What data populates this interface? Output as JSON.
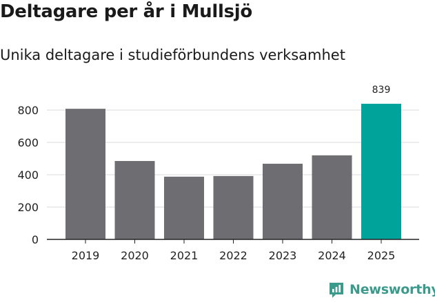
{
  "title": "Deltagare per år i Mullsjö",
  "subtitle": "Unika deltagare i studieförbundens verksamhet",
  "brand": {
    "name": "Newsworthy",
    "icon": "newsworthy-logo-icon",
    "color": "#3a9a8c"
  },
  "colors": {
    "bar": "#6e6d72",
    "highlight": "#00a39a",
    "grid": "#d9d9d9",
    "axis": "#222222"
  },
  "chart_data": {
    "type": "bar",
    "categories": [
      "2019",
      "2020",
      "2021",
      "2022",
      "2023",
      "2024",
      "2025"
    ],
    "values": [
      808,
      485,
      388,
      392,
      468,
      520,
      839
    ],
    "highlight_index": 6,
    "data_labels": [
      null,
      null,
      null,
      null,
      null,
      null,
      "839"
    ],
    "title": "Deltagare per år i Mullsjö",
    "subtitle": "Unika deltagare i studieförbundens verksamhet",
    "xlabel": "",
    "ylabel": "",
    "ylim": [
      0,
      800
    ],
    "yticks": [
      0,
      200,
      400,
      600,
      800
    ],
    "grid": true,
    "legend": "none"
  }
}
